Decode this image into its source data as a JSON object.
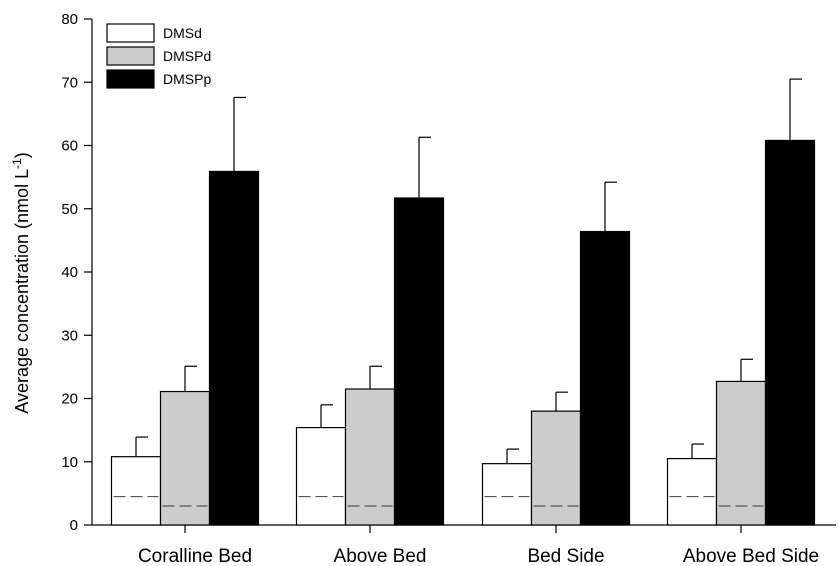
{
  "chart_data": {
    "type": "bar",
    "categories": [
      "Coralline Bed",
      "Above Bed",
      "Bed Side",
      "Above Bed Side"
    ],
    "ylabel_main": "Average concentration (nmol L",
    "ylabel_sup1": "-1",
    "ylabel_close": ")",
    "ylim": [
      0,
      80
    ],
    "yticks": [
      0,
      10,
      20,
      30,
      40,
      50,
      60,
      70,
      80
    ],
    "series": [
      {
        "name": "DMSd",
        "color": "#ffffff",
        "values": [
          10.8,
          15.4,
          9.7,
          10.5
        ],
        "errors": [
          3.1,
          3.6,
          2.3,
          2.3
        ]
      },
      {
        "name": "DMSPd",
        "color": "#cccccc",
        "values": [
          21.1,
          21.5,
          18.0,
          22.7
        ],
        "errors": [
          4.0,
          3.6,
          3.0,
          3.5
        ]
      },
      {
        "name": "DMSPp",
        "color": "#000000",
        "values": [
          55.9,
          51.7,
          46.4,
          60.8
        ],
        "errors": [
          11.7,
          9.6,
          7.8,
          9.7
        ]
      }
    ],
    "reference_lines": [
      {
        "series": "DMSd",
        "value": 4.5,
        "style": "dashed"
      },
      {
        "series": "DMSPd",
        "value": 3.0,
        "style": "dashed"
      }
    ],
    "legend_placement": "top-left",
    "grid": false
  }
}
